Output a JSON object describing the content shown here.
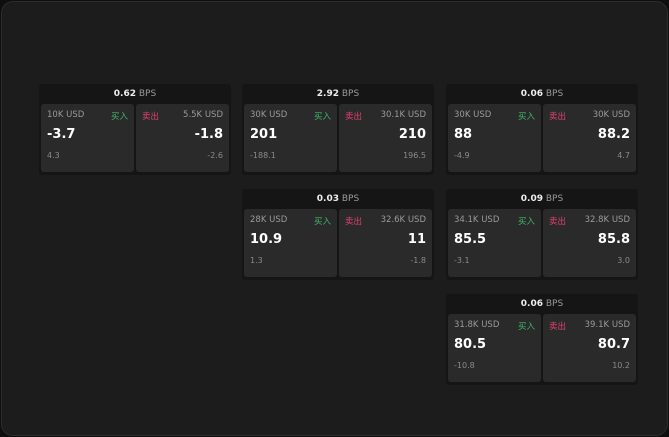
{
  "labels": {
    "buy": "买入",
    "sell": "卖出",
    "unit": "BPS"
  },
  "widgets": [
    {
      "spread": "0.62",
      "buy": {
        "size": "10K USD",
        "price": "-3.7",
        "change": "4.3"
      },
      "sell": {
        "size": "5.5K USD",
        "price": "-1.8",
        "change": "-2.6"
      }
    },
    {
      "spread": "2.92",
      "buy": {
        "size": "30K USD",
        "price": "201",
        "change": "-188.1"
      },
      "sell": {
        "size": "30.1K USD",
        "price": "210",
        "change": "196.5"
      }
    },
    {
      "spread": "0.06",
      "buy": {
        "size": "30K USD",
        "price": "88",
        "change": "-4.9"
      },
      "sell": {
        "size": "30K USD",
        "price": "88.2",
        "change": "4.7"
      }
    },
    {
      "spread": "0.03",
      "buy": {
        "size": "28K USD",
        "price": "10.9",
        "change": "1.3"
      },
      "sell": {
        "size": "32.6K USD",
        "price": "11",
        "change": "-1.8"
      }
    },
    {
      "spread": "0.09",
      "buy": {
        "size": "34.1K USD",
        "price": "85.5",
        "change": "-3.1"
      },
      "sell": {
        "size": "32.8K USD",
        "price": "85.8",
        "change": "3.0"
      }
    },
    {
      "spread": "0.06",
      "buy": {
        "size": "31.8K USD",
        "price": "80.5",
        "change": "-10.8"
      },
      "sell": {
        "size": "39.1K USD",
        "price": "80.7",
        "change": "10.2"
      }
    }
  ]
}
